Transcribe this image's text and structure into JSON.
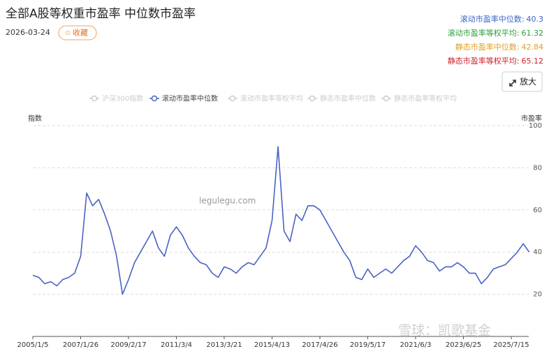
{
  "header": {
    "title": "全部A股等权重市盈率 中位数市盈率",
    "date": "2026-03-24",
    "favorite": "收藏",
    "zoom": "放大"
  },
  "stats": [
    {
      "label": "滚动市盈率中位数:",
      "value": 40.3,
      "color": "#3b64c8"
    },
    {
      "label": "滚动市盈率等权平均:",
      "value": 61.32,
      "color": "#2e9e3a"
    },
    {
      "label": "静态市盈率中位数:",
      "value": 42.84,
      "color": "#e0a020"
    },
    {
      "label": "静态市盈率等权平均:",
      "value": 65.12,
      "color": "#d0202a"
    }
  ],
  "chart_data": {
    "type": "line",
    "y_label_left": "指数",
    "y_label_right": "市盈率",
    "watermark": "legulegu.com",
    "footer_watermark": "雪球：凯歌基金",
    "hidden_series": [
      "沪深300指数",
      "滚动市盈率等权平均",
      "静态市盈率中位数",
      "静态市盈率等权平均"
    ],
    "categories": [
      "2005/1/5",
      null,
      null,
      null,
      null,
      null,
      null,
      null,
      "2007/1/26",
      null,
      null,
      null,
      null,
      null,
      null,
      null,
      "2009/2/17",
      null,
      null,
      null,
      null,
      null,
      null,
      null,
      "2011/3/4",
      null,
      null,
      null,
      null,
      null,
      null,
      null,
      "2013/3/21",
      null,
      null,
      null,
      null,
      null,
      null,
      null,
      "2015/4/13",
      null,
      null,
      null,
      null,
      null,
      null,
      null,
      "2017/4/26",
      null,
      null,
      null,
      null,
      null,
      null,
      null,
      "2019/5/17",
      null,
      null,
      null,
      null,
      null,
      null,
      null,
      "2021/6/3",
      null,
      null,
      null,
      null,
      null,
      null,
      null,
      "2023/6/25",
      null,
      null,
      null,
      null,
      null,
      null,
      null,
      "2025/7/15",
      null,
      null,
      null
    ],
    "series": [
      {
        "name": "滚动市盈率中位数",
        "color": "#4a62c4",
        "values": [
          29,
          28,
          25,
          26,
          24,
          27,
          28,
          30,
          38,
          68,
          62,
          65,
          58,
          50,
          38,
          20,
          27,
          35,
          40,
          45,
          50,
          42,
          38,
          48,
          52,
          48,
          42,
          38,
          35,
          34,
          30,
          28,
          33,
          32,
          30,
          33,
          35,
          34,
          38,
          42,
          55,
          90,
          50,
          45,
          58,
          55,
          62,
          62,
          60,
          55,
          50,
          45,
          40,
          36,
          28,
          27,
          32,
          28,
          30,
          32,
          30,
          33,
          36,
          38,
          43,
          40,
          36,
          35,
          31,
          33,
          33,
          35,
          33,
          30,
          30,
          25,
          28,
          32,
          33,
          34,
          37,
          40,
          44,
          40
        ]
      }
    ],
    "ylim": [
      0,
      100
    ],
    "yticks": [
      20,
      40,
      60,
      80,
      100
    ],
    "grid": true
  }
}
